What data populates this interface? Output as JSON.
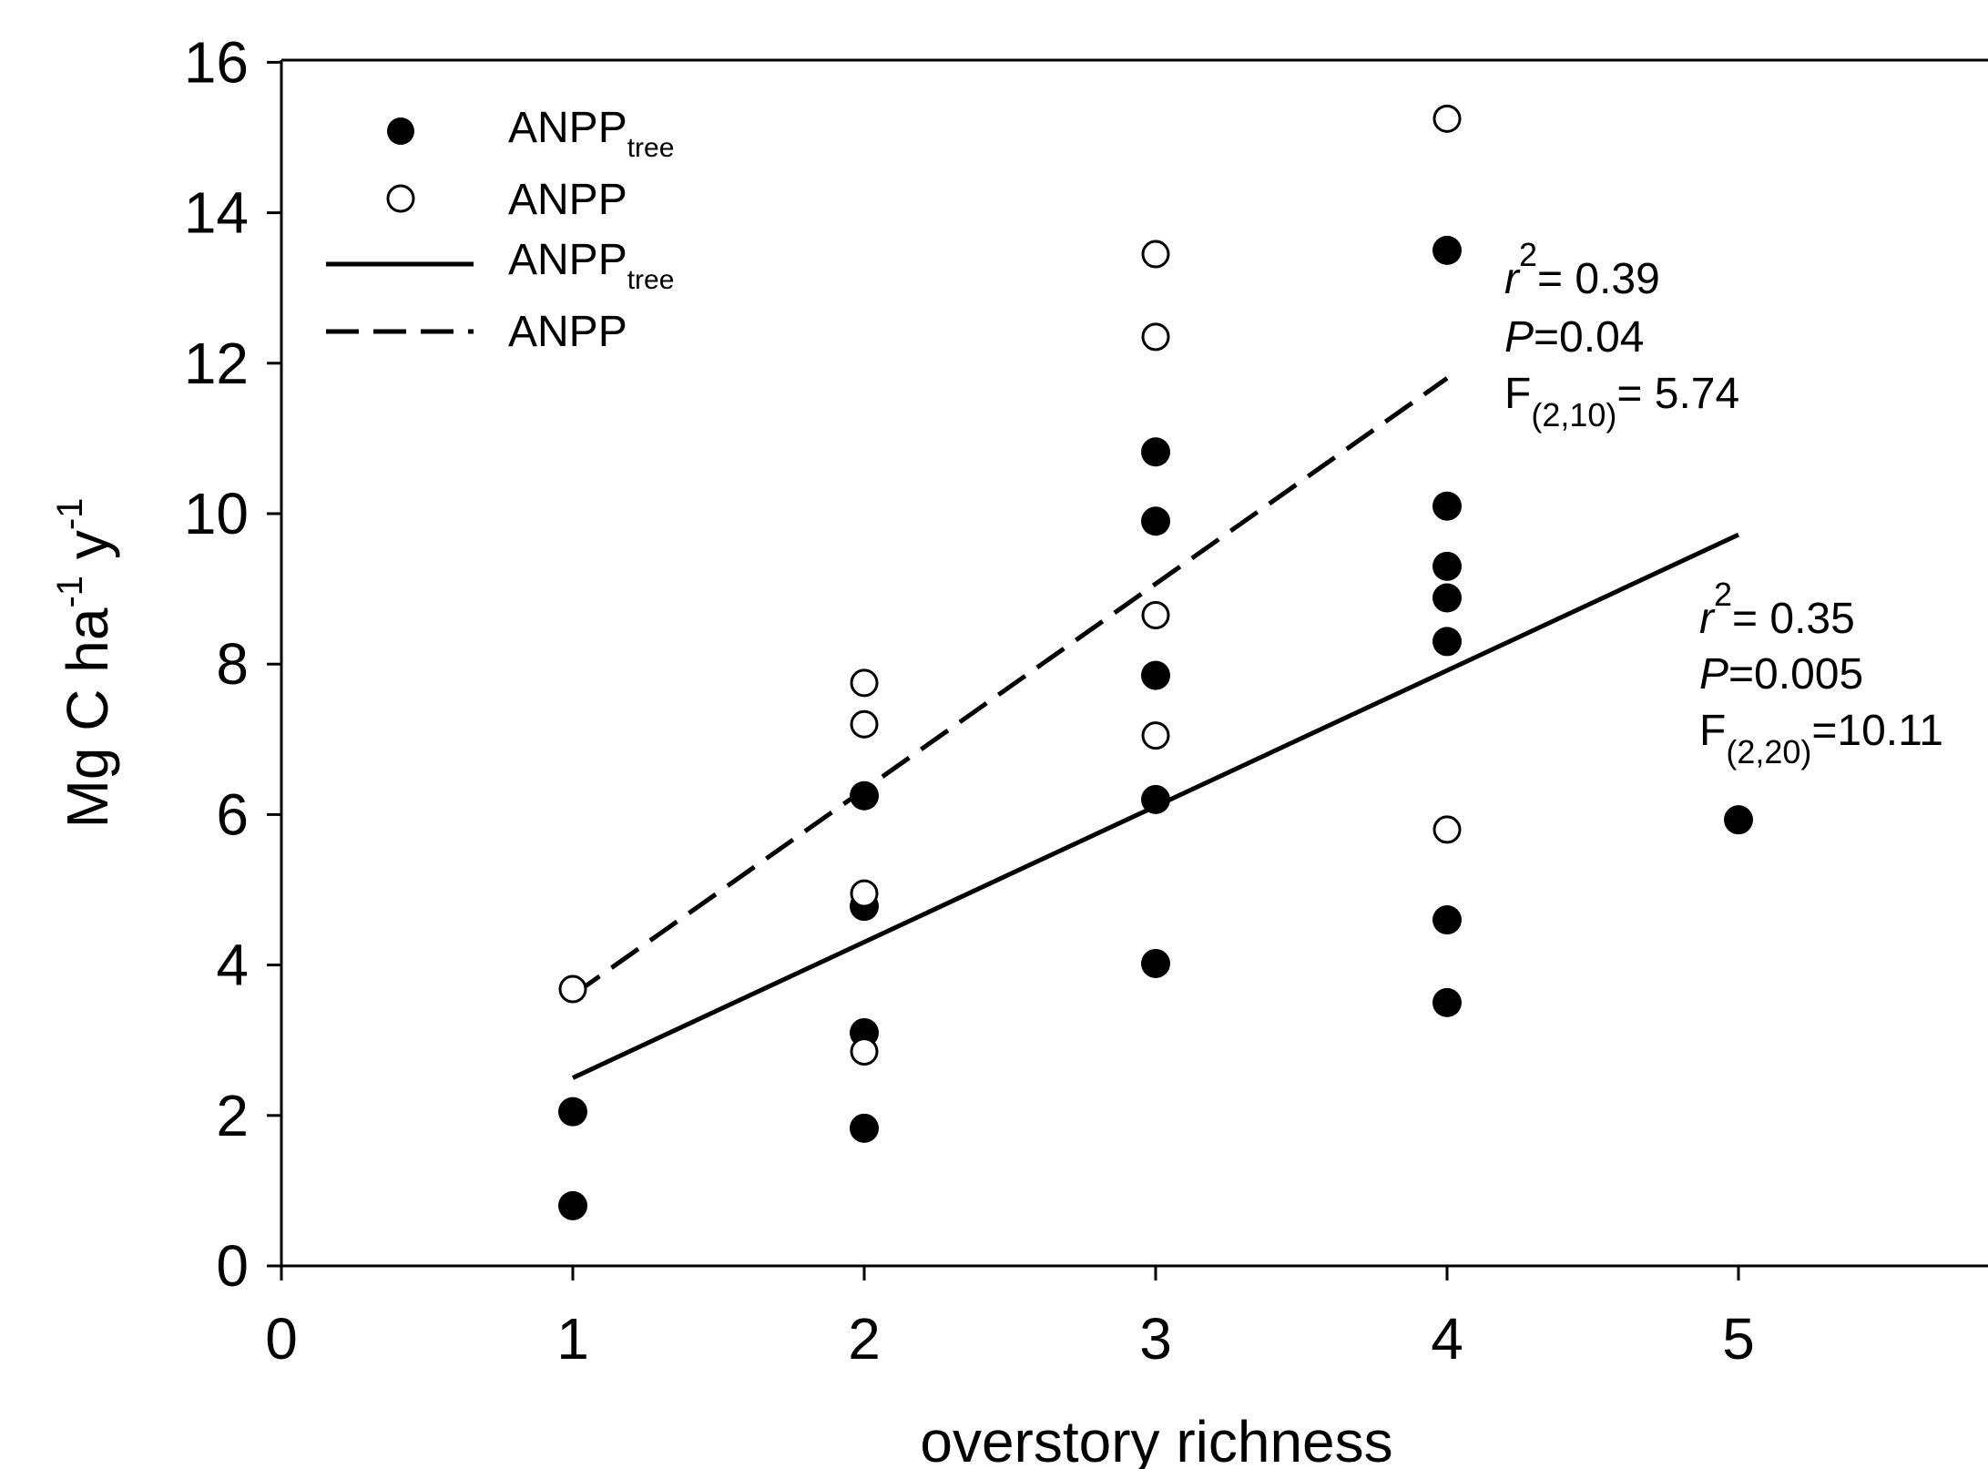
{
  "chart_data": {
    "type": "scatter",
    "title": "",
    "xlabel": "overstory richness",
    "ylabel": {
      "main": "Mg C ha",
      "sup1": "-1",
      "mid": " y",
      "sup2": "-1"
    },
    "xlim": [
      0,
      6
    ],
    "ylim": [
      0,
      16
    ],
    "x_ticks": [
      0,
      1,
      2,
      3,
      4,
      5
    ],
    "y_ticks": [
      0,
      2,
      4,
      6,
      8,
      10,
      12,
      14,
      16
    ],
    "grid": false,
    "legend_position": "top-left",
    "legend": [
      {
        "kind": "filled-marker",
        "label": "ANPP",
        "sub": "tree"
      },
      {
        "kind": "open-marker",
        "label": "ANPP",
        "sub": ""
      },
      {
        "kind": "solid-line",
        "label": "ANPP",
        "sub": "tree"
      },
      {
        "kind": "dashed-line",
        "label": "ANPP",
        "sub": ""
      }
    ],
    "series": [
      {
        "name": "ANPP_tree",
        "marker": "filled",
        "points": [
          [
            1,
            0.8
          ],
          [
            1,
            2.05
          ],
          [
            2,
            1.83
          ],
          [
            2,
            3.1
          ],
          [
            2,
            4.78
          ],
          [
            2,
            6.25
          ],
          [
            3,
            4.02
          ],
          [
            3,
            6.2
          ],
          [
            3,
            7.85
          ],
          [
            3,
            9.9
          ],
          [
            3,
            10.82
          ],
          [
            4,
            3.5
          ],
          [
            4,
            4.6
          ],
          [
            4,
            8.3
          ],
          [
            4,
            8.88
          ],
          [
            4,
            9.3
          ],
          [
            4,
            10.1
          ],
          [
            4,
            13.5
          ],
          [
            5,
            5.93
          ]
        ]
      },
      {
        "name": "ANPP",
        "marker": "open",
        "points": [
          [
            1,
            3.68
          ],
          [
            2,
            2.85
          ],
          [
            2,
            4.95
          ],
          [
            2,
            7.2
          ],
          [
            2,
            7.75
          ],
          [
            3,
            7.05
          ],
          [
            3,
            8.65
          ],
          [
            3,
            12.35
          ],
          [
            3,
            13.45
          ],
          [
            4,
            5.8
          ],
          [
            4,
            15.25
          ]
        ]
      }
    ],
    "fits": [
      {
        "series": "ANPP_tree",
        "style": "solid",
        "x": [
          1,
          5
        ],
        "y": [
          2.5,
          9.72
        ]
      },
      {
        "series": "ANPP",
        "style": "dashed",
        "x": [
          1,
          4
        ],
        "y": [
          3.6,
          11.8
        ]
      }
    ],
    "annotations": [
      {
        "target": "ANPP",
        "r2": "= 0.39",
        "p": "=0.04",
        "f_sub": "(2,10)",
        "f_val": "= 5.74"
      },
      {
        "target": "ANPP_tree",
        "r2": "= 0.35",
        "p": "=0.005",
        "f_sub": "(2,20)",
        "f_val": "=10.11"
      }
    ]
  }
}
